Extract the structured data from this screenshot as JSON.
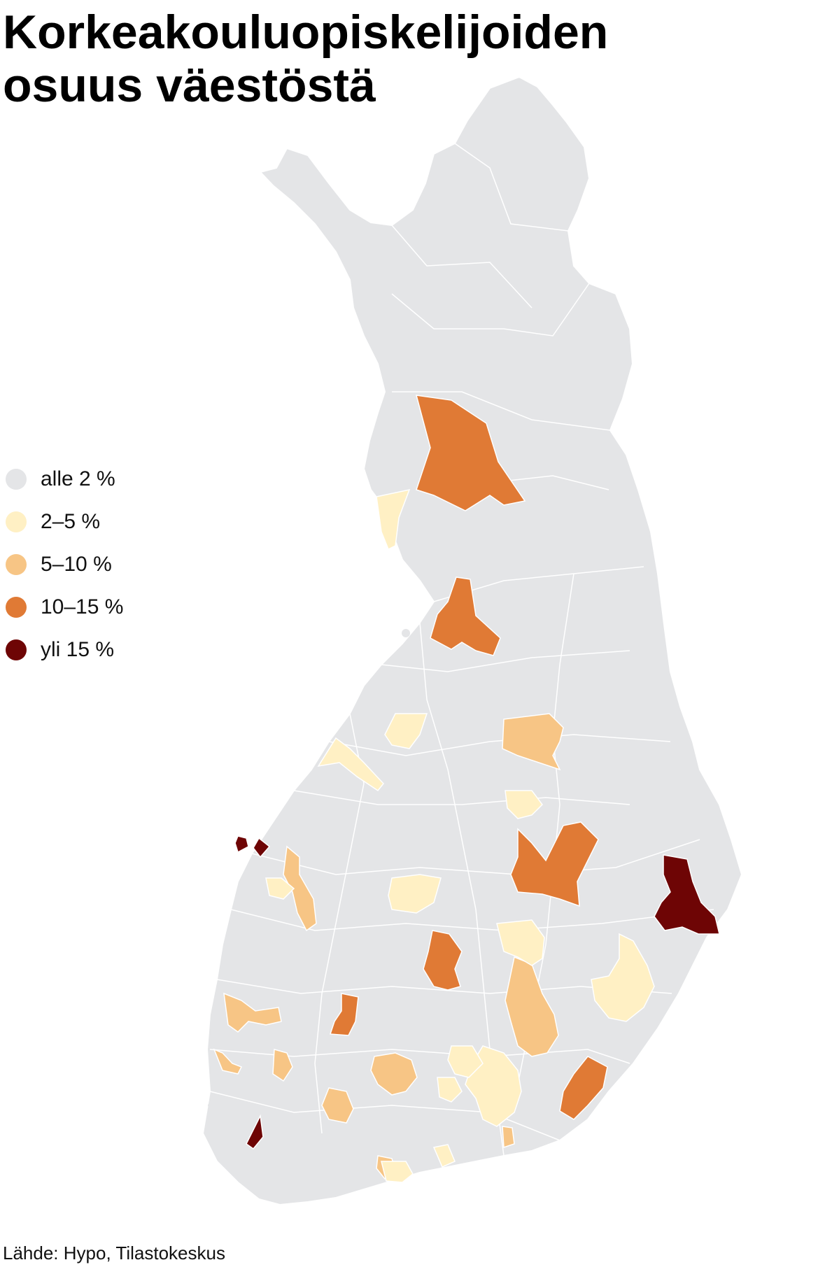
{
  "title": {
    "line1": "Korkeakouluopiskelijoiden",
    "line2": "osuus väestöstä"
  },
  "legend": {
    "items": [
      {
        "label": "alle 2 %",
        "color": "#e4e5e7"
      },
      {
        "label": "2–5 %",
        "color": "#fff0c4"
      },
      {
        "label": "5–10 %",
        "color": "#f7c585"
      },
      {
        "label": "10–15 %",
        "color": "#e07a35"
      },
      {
        "label": "yli 15 %",
        "color": "#6e0505"
      }
    ]
  },
  "map": {
    "region": "Suomi",
    "base_color": "#e4e5e7",
    "border_color": "#ffffff"
  },
  "source": "Lähde: Hypo, Tilastokeskus"
}
